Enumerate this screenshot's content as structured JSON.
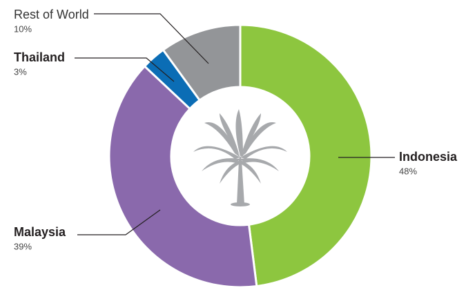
{
  "chart_data": {
    "type": "donut",
    "categories": [
      "Indonesia",
      "Malaysia",
      "Thailand",
      "Rest of World"
    ],
    "values": [
      48,
      39,
      3,
      10
    ],
    "value_labels": [
      "48%",
      "39%",
      "3%",
      "10%"
    ],
    "colors": [
      "#8dc63f",
      "#8a69ac",
      "#0b6db5",
      "#939598"
    ]
  }
}
